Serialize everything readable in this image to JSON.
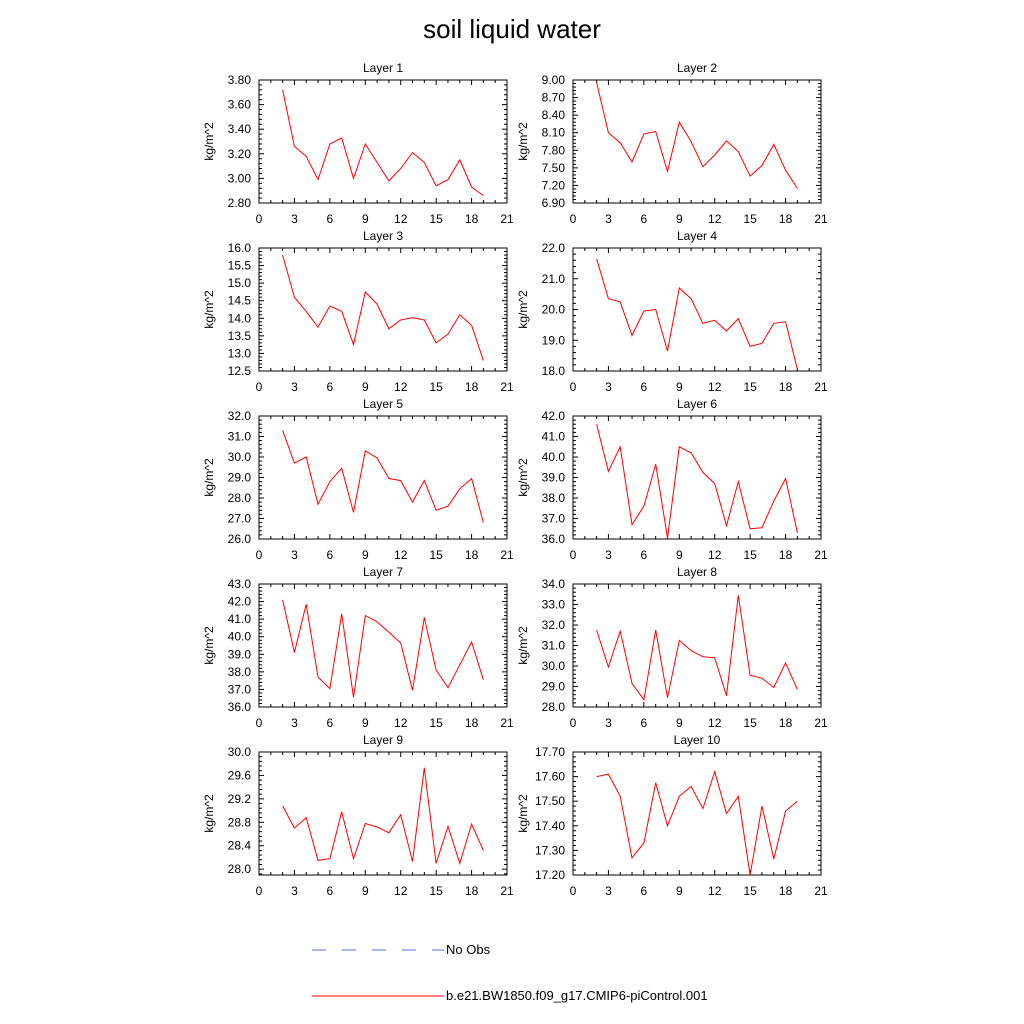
{
  "title": "soil liquid water",
  "legend": [
    {
      "label": "No Obs",
      "color": "#5a6fd0",
      "style": "dashed"
    },
    {
      "label": "b.e21.BW1850.f09_g17.CMIP6-piControl.001",
      "color": "#ff0000",
      "style": "solid"
    }
  ],
  "chart_data": [
    {
      "type": "line",
      "title": "Layer 1",
      "ylabel": "kg/m^2",
      "xlim": [
        0,
        21
      ],
      "xticks": [
        "0",
        "3",
        "6",
        "9",
        "12",
        "15",
        "18",
        "21"
      ],
      "ylim": [
        2.8,
        3.8
      ],
      "yticks": [
        "2.80",
        "3.00",
        "3.20",
        "3.40",
        "3.60",
        "3.80"
      ],
      "series": [
        {
          "color": "#ff0000",
          "x": [
            2,
            3,
            4,
            5,
            6,
            7,
            8,
            9,
            10,
            11,
            12,
            13,
            14,
            15,
            16,
            17,
            18,
            19
          ],
          "y": [
            3.72,
            3.26,
            3.18,
            2.99,
            3.28,
            3.33,
            3.0,
            3.28,
            3.13,
            2.98,
            3.08,
            3.21,
            3.13,
            2.94,
            2.99,
            3.15,
            2.93,
            2.86
          ]
        }
      ]
    },
    {
      "type": "line",
      "title": "Layer 2",
      "ylabel": "kg/m^2",
      "xlim": [
        0,
        21
      ],
      "xticks": [
        "0",
        "3",
        "6",
        "9",
        "12",
        "15",
        "18",
        "21"
      ],
      "ylim": [
        6.9,
        9.0
      ],
      "yticks": [
        "6.90",
        "7.20",
        "7.50",
        "7.80",
        "8.10",
        "8.40",
        "8.70",
        "9.00"
      ],
      "series": [
        {
          "color": "#ff0000",
          "x": [
            2,
            3,
            4,
            5,
            6,
            7,
            8,
            9,
            10,
            11,
            12,
            13,
            14,
            15,
            16,
            17,
            18,
            19
          ],
          "y": [
            8.96,
            8.1,
            7.93,
            7.6,
            8.08,
            8.12,
            7.44,
            8.28,
            7.95,
            7.52,
            7.72,
            7.96,
            7.78,
            7.36,
            7.54,
            7.9,
            7.46,
            7.15
          ]
        }
      ]
    },
    {
      "type": "line",
      "title": "Layer 3",
      "ylabel": "kg/m^2",
      "xlim": [
        0,
        21
      ],
      "xticks": [
        "0",
        "3",
        "6",
        "9",
        "12",
        "15",
        "18",
        "21"
      ],
      "ylim": [
        12.5,
        16.0
      ],
      "yticks": [
        "12.5",
        "13.0",
        "13.5",
        "14.0",
        "14.5",
        "15.0",
        "15.5",
        "16.0"
      ],
      "series": [
        {
          "color": "#ff0000",
          "x": [
            2,
            3,
            4,
            5,
            6,
            7,
            8,
            9,
            10,
            11,
            12,
            13,
            14,
            15,
            16,
            17,
            18,
            19
          ],
          "y": [
            15.8,
            14.6,
            14.2,
            13.75,
            14.35,
            14.2,
            13.25,
            14.75,
            14.4,
            13.7,
            13.95,
            14.02,
            13.95,
            13.3,
            13.55,
            14.1,
            13.8,
            12.8
          ]
        }
      ]
    },
    {
      "type": "line",
      "title": "Layer 4",
      "ylabel": "kg/m^2",
      "xlim": [
        0,
        21
      ],
      "xticks": [
        "0",
        "3",
        "6",
        "9",
        "12",
        "15",
        "18",
        "21"
      ],
      "ylim": [
        18.0,
        22.0
      ],
      "yticks": [
        "18.0",
        "19.0",
        "20.0",
        "21.0",
        "22.0"
      ],
      "series": [
        {
          "color": "#ff0000",
          "x": [
            2,
            3,
            4,
            5,
            6,
            7,
            8,
            9,
            10,
            11,
            12,
            13,
            14,
            15,
            16,
            17,
            18,
            19
          ],
          "y": [
            21.65,
            20.35,
            20.25,
            19.15,
            19.95,
            20.0,
            18.65,
            20.7,
            20.35,
            19.55,
            19.65,
            19.3,
            19.7,
            18.8,
            18.9,
            19.55,
            19.6,
            18.05
          ]
        }
      ]
    },
    {
      "type": "line",
      "title": "Layer 5",
      "ylabel": "kg/m^2",
      "xlim": [
        0,
        21
      ],
      "xticks": [
        "0",
        "3",
        "6",
        "9",
        "12",
        "15",
        "18",
        "21"
      ],
      "ylim": [
        26.0,
        32.0
      ],
      "yticks": [
        "26.0",
        "27.0",
        "28.0",
        "29.0",
        "30.0",
        "31.0",
        "32.0"
      ],
      "series": [
        {
          "color": "#ff0000",
          "x": [
            2,
            3,
            4,
            5,
            6,
            7,
            8,
            9,
            10,
            11,
            12,
            13,
            14,
            15,
            16,
            17,
            18,
            19
          ],
          "y": [
            31.3,
            29.7,
            30.0,
            27.7,
            28.8,
            29.45,
            27.3,
            30.3,
            29.95,
            28.95,
            28.85,
            27.8,
            28.85,
            27.4,
            27.6,
            28.45,
            28.95,
            26.8
          ]
        }
      ]
    },
    {
      "type": "line",
      "title": "Layer 6",
      "ylabel": "kg/m^2",
      "xlim": [
        0,
        21
      ],
      "xticks": [
        "0",
        "3",
        "6",
        "9",
        "12",
        "15",
        "18",
        "21"
      ],
      "ylim": [
        36.0,
        42.0
      ],
      "yticks": [
        "36.0",
        "37.0",
        "38.0",
        "39.0",
        "40.0",
        "41.0",
        "42.0"
      ],
      "series": [
        {
          "color": "#ff0000",
          "x": [
            2,
            3,
            4,
            5,
            6,
            7,
            8,
            9,
            10,
            11,
            12,
            13,
            14,
            15,
            16,
            17,
            18,
            19
          ],
          "y": [
            41.6,
            39.3,
            40.5,
            36.7,
            37.6,
            39.65,
            36.05,
            40.5,
            40.2,
            39.25,
            38.7,
            36.65,
            38.8,
            36.5,
            36.55,
            37.85,
            38.95,
            36.3
          ]
        }
      ]
    },
    {
      "type": "line",
      "title": "Layer 7",
      "ylabel": "kg/m^2",
      "xlim": [
        0,
        21
      ],
      "xticks": [
        "0",
        "3",
        "6",
        "9",
        "12",
        "15",
        "18",
        "21"
      ],
      "ylim": [
        36.0,
        43.0
      ],
      "yticks": [
        "36.0",
        "37.0",
        "38.0",
        "39.0",
        "40.0",
        "41.0",
        "42.0",
        "43.0"
      ],
      "series": [
        {
          "color": "#ff0000",
          "x": [
            2,
            3,
            4,
            5,
            6,
            7,
            8,
            9,
            10,
            11,
            12,
            13,
            14,
            15,
            16,
            17,
            18,
            19
          ],
          "y": [
            42.1,
            39.1,
            41.85,
            37.7,
            37.05,
            41.3,
            36.55,
            41.2,
            40.85,
            40.25,
            39.65,
            36.95,
            41.1,
            38.1,
            37.1,
            38.4,
            39.7,
            37.55
          ]
        }
      ]
    },
    {
      "type": "line",
      "title": "Layer 8",
      "ylabel": "kg/m^2",
      "xlim": [
        0,
        21
      ],
      "xticks": [
        "0",
        "3",
        "6",
        "9",
        "12",
        "15",
        "18",
        "21"
      ],
      "ylim": [
        28.0,
        34.0
      ],
      "yticks": [
        "28.0",
        "29.0",
        "30.0",
        "31.0",
        "32.0",
        "33.0",
        "34.0"
      ],
      "series": [
        {
          "color": "#ff0000",
          "x": [
            2,
            3,
            4,
            5,
            6,
            7,
            8,
            9,
            10,
            11,
            12,
            13,
            14,
            15,
            16,
            17,
            18,
            19
          ],
          "y": [
            31.75,
            29.95,
            31.7,
            29.15,
            28.35,
            31.75,
            28.45,
            31.25,
            30.75,
            30.45,
            30.4,
            28.55,
            33.45,
            29.55,
            29.4,
            28.95,
            30.15,
            28.85
          ]
        }
      ]
    },
    {
      "type": "line",
      "title": "Layer 9",
      "ylabel": "kg/m^2",
      "xlim": [
        0,
        21
      ],
      "xticks": [
        "0",
        "3",
        "6",
        "9",
        "12",
        "15",
        "18",
        "21"
      ],
      "ylim": [
        27.9,
        30.0
      ],
      "yticks": [
        "28.0",
        "28.4",
        "28.8",
        "29.2",
        "29.6",
        "30.0"
      ],
      "series": [
        {
          "color": "#ff0000",
          "x": [
            2,
            3,
            4,
            5,
            6,
            7,
            8,
            9,
            10,
            11,
            12,
            13,
            14,
            15,
            16,
            17,
            18,
            19
          ],
          "y": [
            29.08,
            28.7,
            28.88,
            28.15,
            28.18,
            28.98,
            28.18,
            28.78,
            28.72,
            28.62,
            28.93,
            28.13,
            29.73,
            28.1,
            28.73,
            28.1,
            28.77,
            28.32
          ]
        }
      ]
    },
    {
      "type": "line",
      "title": "Layer 10",
      "ylabel": "kg/m^2",
      "xlim": [
        0,
        21
      ],
      "xticks": [
        "0",
        "3",
        "6",
        "9",
        "12",
        "15",
        "18",
        "21"
      ],
      "ylim": [
        17.2,
        17.7
      ],
      "yticks": [
        "17.20",
        "17.30",
        "17.40",
        "17.50",
        "17.60",
        "17.70"
      ],
      "series": [
        {
          "color": "#ff0000",
          "x": [
            2,
            3,
            4,
            5,
            6,
            7,
            8,
            9,
            10,
            11,
            12,
            13,
            14,
            15,
            16,
            17,
            18,
            19
          ],
          "y": [
            17.6,
            17.61,
            17.52,
            17.27,
            17.33,
            17.575,
            17.4,
            17.52,
            17.56,
            17.47,
            17.62,
            17.45,
            17.52,
            17.2,
            17.48,
            17.265,
            17.46,
            17.5
          ]
        }
      ]
    }
  ]
}
